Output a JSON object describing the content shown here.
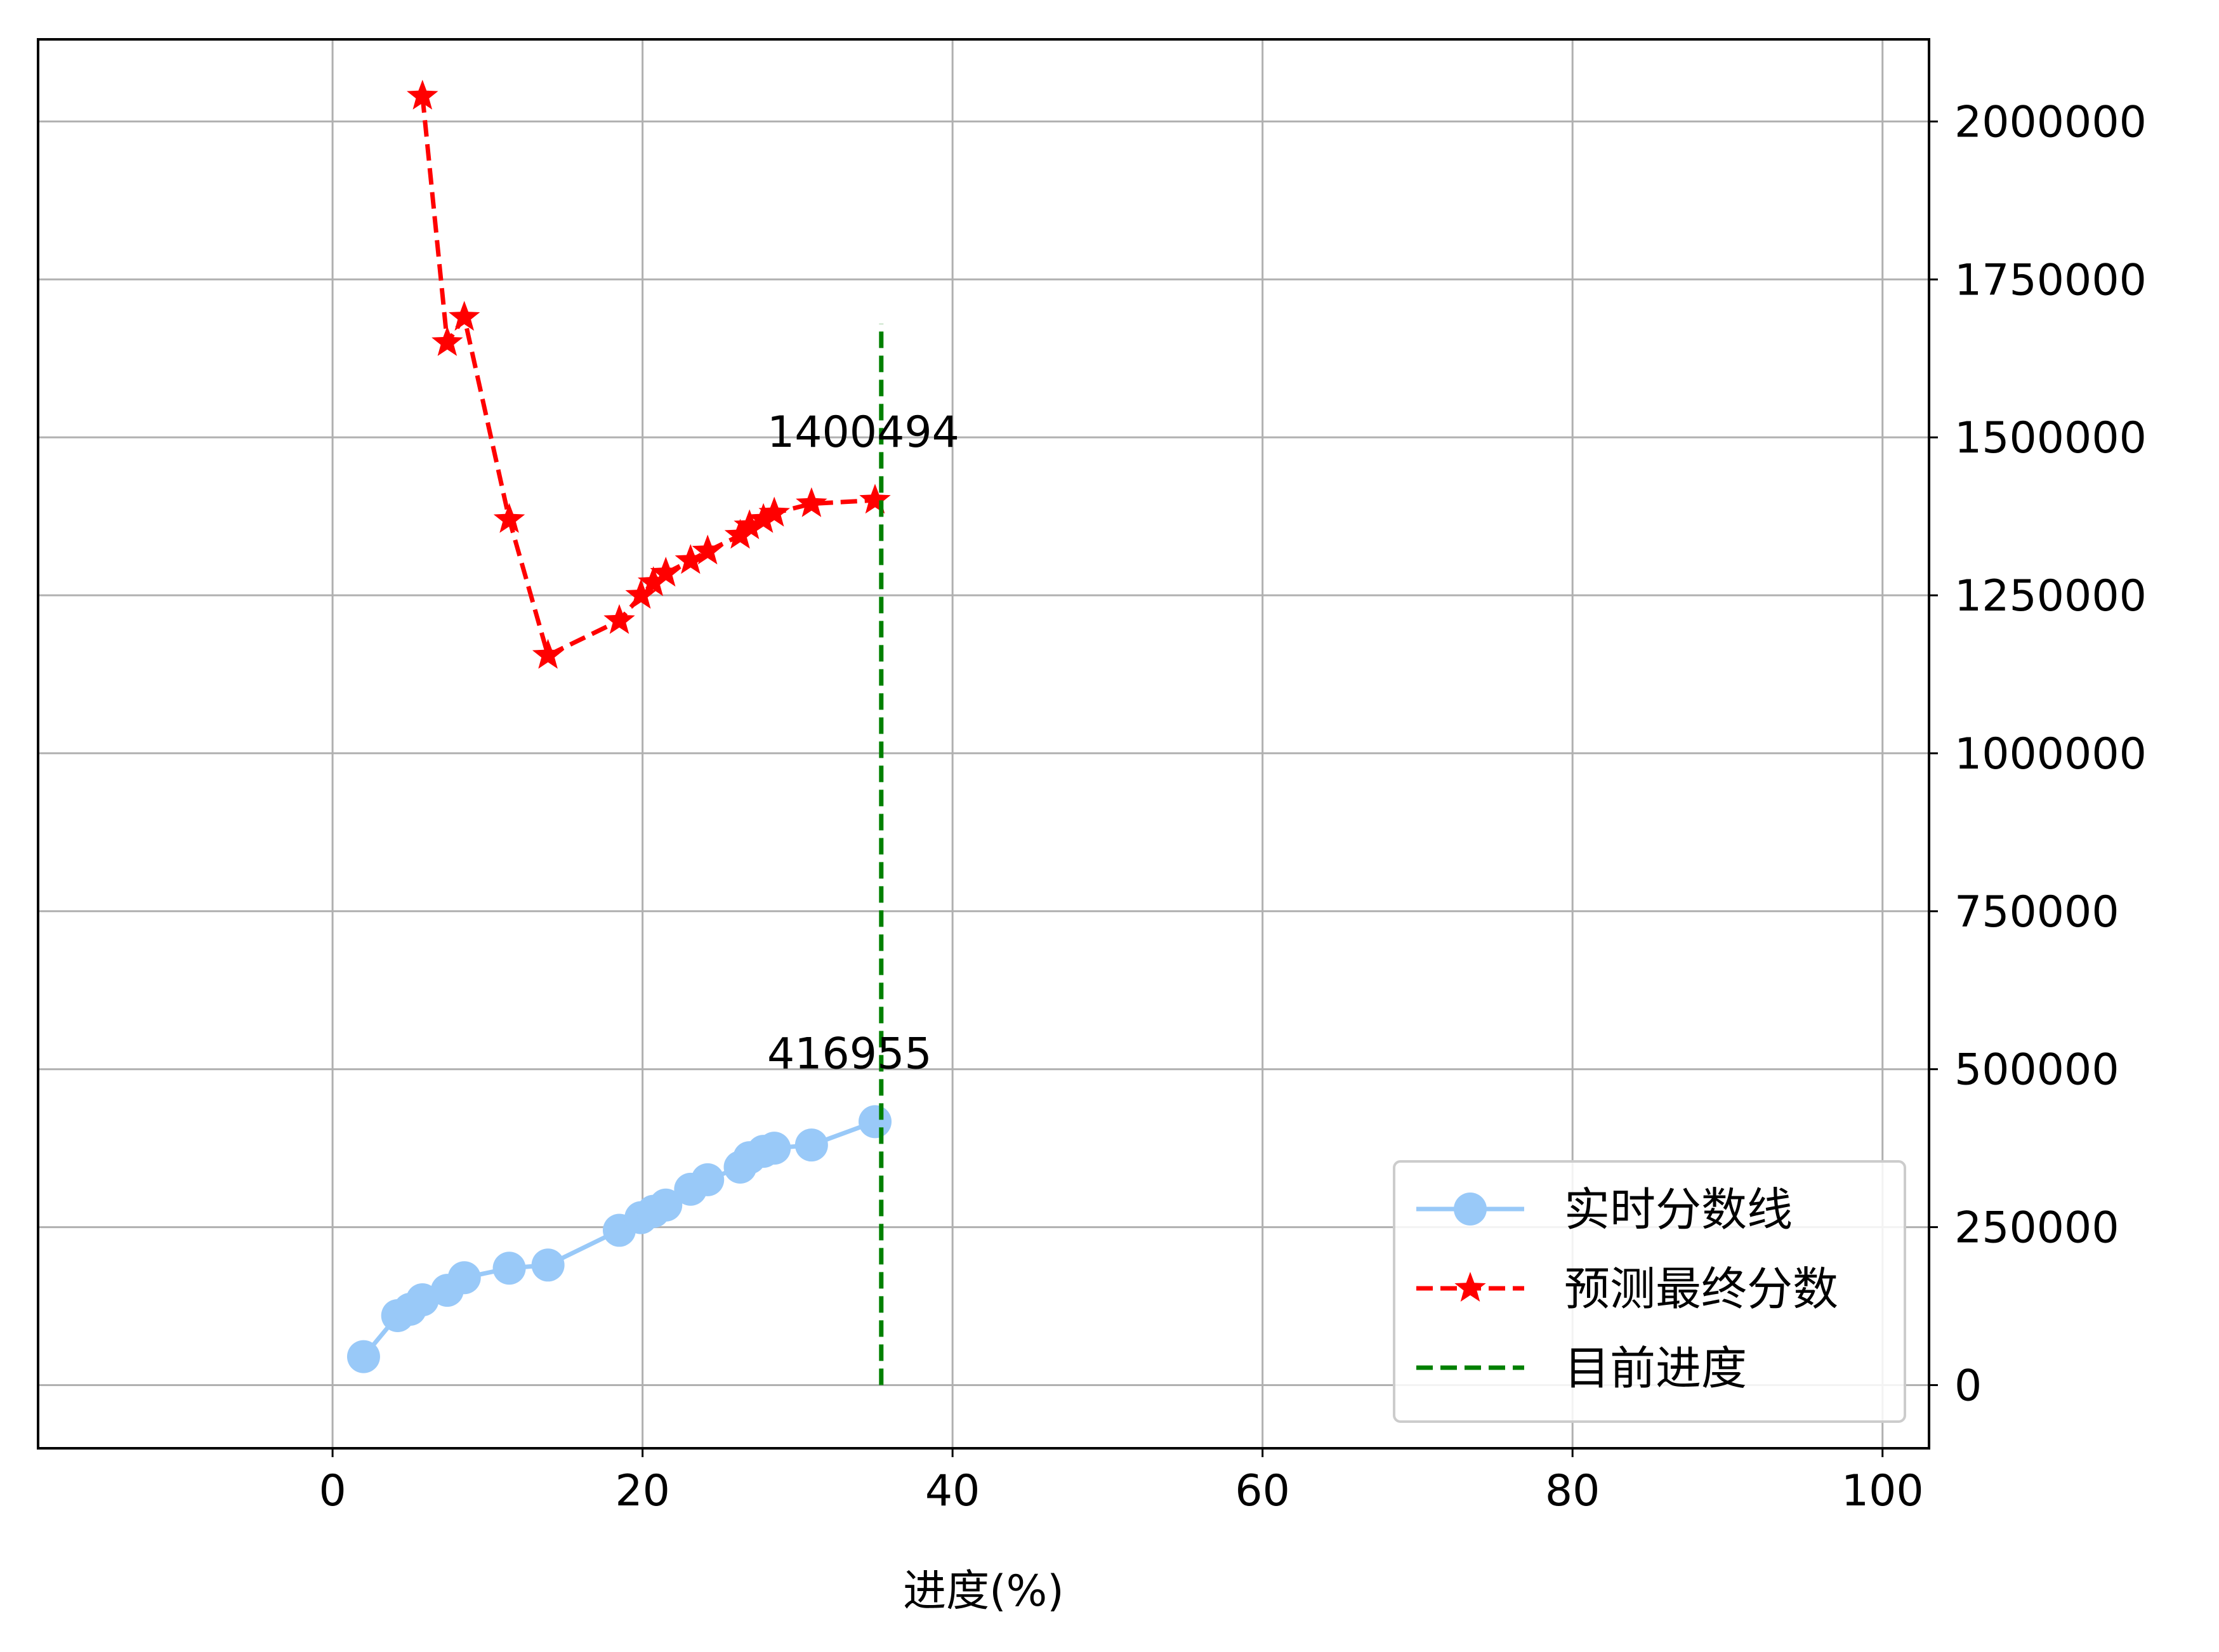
{
  "chart_data": {
    "type": "line",
    "xlabel": "进度(%)",
    "ylabel": "",
    "xlim": [
      -19,
      103
    ],
    "ylim": [
      -100000,
      2130000
    ],
    "xticks": [
      0,
      20,
      40,
      60,
      80,
      100
    ],
    "yticks": [
      0,
      250000,
      500000,
      750000,
      1000000,
      1250000,
      1500000,
      1750000,
      2000000
    ],
    "y_axis_side": "right",
    "grid": true,
    "legend_position": "lower-right",
    "series": [
      {
        "name": "实时分数线",
        "style": "solid",
        "marker": "circle",
        "color": "#99c9f8",
        "x": [
          2.0,
          4.2,
          5.0,
          5.8,
          7.4,
          8.5,
          11.4,
          13.9,
          18.5,
          19.9,
          20.7,
          21.5,
          23.1,
          24.2,
          26.3,
          26.9,
          27.8,
          28.5,
          30.9,
          35.0
        ],
        "y": [
          45000,
          110000,
          120000,
          135000,
          150000,
          170000,
          185000,
          190000,
          245000,
          265000,
          275000,
          285000,
          310000,
          325000,
          345000,
          360000,
          370000,
          375000,
          380000,
          416955
        ]
      },
      {
        "name": "预测最终分数",
        "style": "dashed",
        "marker": "star",
        "color": "#ff0000",
        "x": [
          5.8,
          7.4,
          8.5,
          11.4,
          13.9,
          18.5,
          19.9,
          20.7,
          21.5,
          23.1,
          24.2,
          26.3,
          26.9,
          27.8,
          28.5,
          30.9,
          35.0
        ],
        "y": [
          2040000,
          1650000,
          1690000,
          1370000,
          1155000,
          1210000,
          1250000,
          1270000,
          1285000,
          1305000,
          1320000,
          1345000,
          1360000,
          1370000,
          1380000,
          1395000,
          1400494
        ]
      },
      {
        "name": "目前进度",
        "style": "dashed",
        "marker": "none",
        "color": "#008000",
        "x": [
          35.4,
          35.4
        ],
        "y": [
          0,
          1680000
        ]
      }
    ],
    "annotations": [
      {
        "text": "1400494",
        "x": 35.0,
        "y": 1400494
      },
      {
        "text": "416955",
        "x": 35.0,
        "y": 416955
      }
    ]
  }
}
